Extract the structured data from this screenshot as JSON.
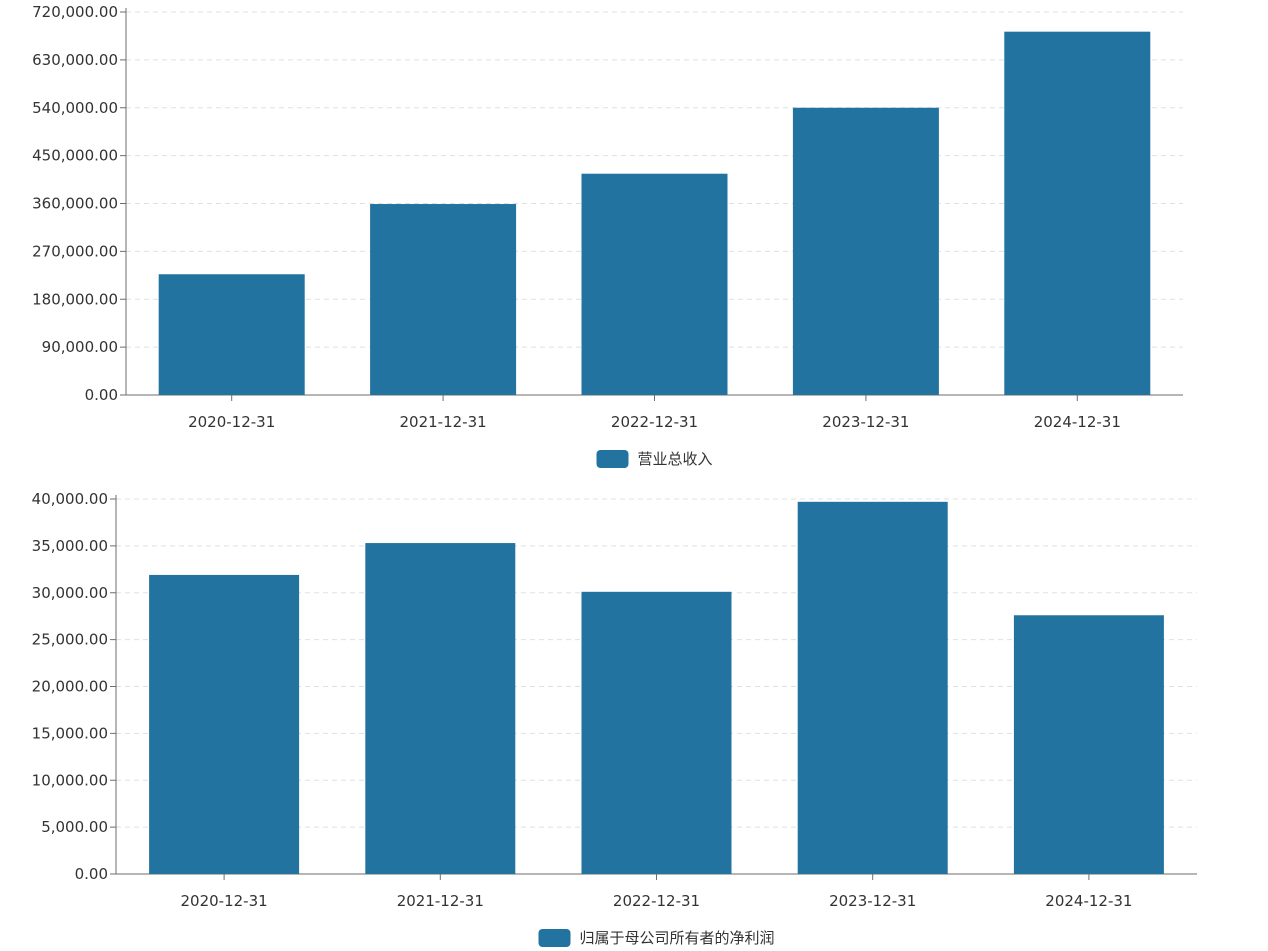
{
  "chart_data": [
    {
      "type": "bar",
      "categories": [
        "2020-12-31",
        "2021-12-31",
        "2022-12-31",
        "2023-12-31",
        "2024-12-31"
      ],
      "series": [
        {
          "name": "营业总收入",
          "values": [
            227000,
            359000,
            416000,
            540000,
            683000
          ]
        }
      ],
      "yticks": [
        "0.00",
        "90,000.00",
        "180,000.00",
        "270,000.00",
        "360,000.00",
        "450,000.00",
        "540,000.00",
        "630,000.00",
        "720,000.00"
      ],
      "ylim": [
        0,
        720000
      ],
      "grid": true,
      "legend_position": "bottom-center",
      "color": "#22739f"
    },
    {
      "type": "bar",
      "categories": [
        "2020-12-31",
        "2021-12-31",
        "2022-12-31",
        "2023-12-31",
        "2024-12-31"
      ],
      "series": [
        {
          "name": "归属于母公司所有者的净利润",
          "values": [
            31900,
            35300,
            30100,
            39700,
            27600
          ]
        }
      ],
      "yticks": [
        "0.00",
        "5,000.00",
        "10,000.00",
        "15,000.00",
        "20,000.00",
        "25,000.00",
        "30,000.00",
        "35,000.00",
        "40,000.00"
      ],
      "ylim": [
        0,
        40000
      ],
      "grid": true,
      "legend_position": "bottom-center",
      "color": "#22739f"
    }
  ]
}
